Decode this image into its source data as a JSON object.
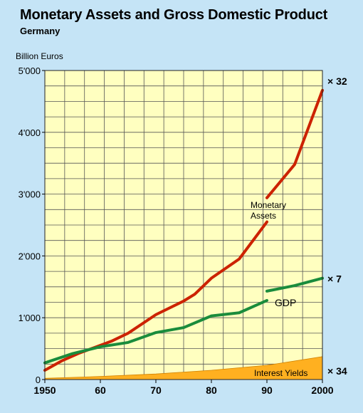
{
  "page": {
    "title": "Monetary Assets and Gross Domestic Product",
    "subtitle": "Germany",
    "ylabel": "Billion Euros"
  },
  "chart_data": {
    "type": "line",
    "title": "Monetary Assets and Gross Domestic Product",
    "subtitle": "Germany",
    "ylabel": "Billion Euros",
    "xlabel": "",
    "xlim": [
      1950,
      2000
    ],
    "ylim": [
      0,
      5000
    ],
    "x_ticks": [
      1950,
      1960,
      1970,
      1980,
      1990,
      2000
    ],
    "x_tick_labels": [
      "1950",
      "60",
      "70",
      "80",
      "90",
      "2000"
    ],
    "y_ticks": [
      0,
      1000,
      2000,
      3000,
      4000,
      5000
    ],
    "y_tick_labels": [
      "0",
      "1'000",
      "2'000",
      "3'000",
      "4'000",
      "5'000"
    ],
    "grid": true,
    "plot_background": "#ffffc0",
    "series": [
      {
        "name": "Monetary Assets",
        "label_lines": [
          "Monetary",
          "Assets"
        ],
        "color": "#cc2200",
        "right_label": "× 32",
        "segments": [
          {
            "x": [
              1950,
              1953,
              1956,
              1959,
              1962,
              1965,
              1970,
              1975,
              1977,
              1980,
              1985,
              1990
            ],
            "y": [
              150,
              300,
              420,
              520,
              620,
              750,
              1050,
              1270,
              1380,
              1640,
              1950,
              2550
            ]
          },
          {
            "x": [
              1990,
              1995,
              2000
            ],
            "y": [
              2940,
              3480,
              4680
            ]
          }
        ]
      },
      {
        "name": "GDP",
        "color": "#1a8c3c",
        "right_label": "× 7",
        "segments": [
          {
            "x": [
              1950,
              1955,
              1960,
              1965,
              1970,
              1975,
              1980,
              1985,
              1990
            ],
            "y": [
              270,
              420,
              530,
              600,
              760,
              840,
              1030,
              1080,
              1280
            ]
          },
          {
            "x": [
              1990,
              1995,
              2000
            ],
            "y": [
              1430,
              1520,
              1640
            ]
          }
        ]
      },
      {
        "name": "Interest Yields",
        "type": "area",
        "color": "#ffb020",
        "right_label": "× 34",
        "x": [
          1950,
          1960,
          1970,
          1980,
          1990,
          2000
        ],
        "y": [
          20,
          50,
          90,
          150,
          230,
          370
        ]
      }
    ]
  }
}
